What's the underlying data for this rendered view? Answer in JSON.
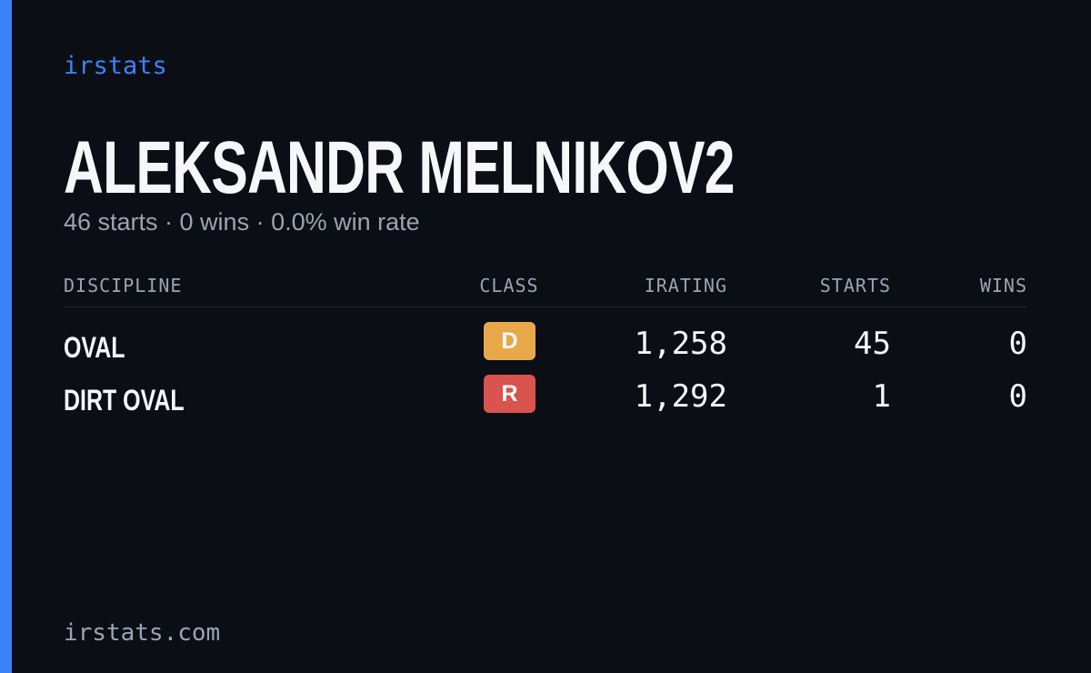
{
  "header": {
    "brand": "irstats",
    "name": "ALEKSANDR MELNIKOV2",
    "subtitle": "46 starts · 0 wins · 0.0% win rate"
  },
  "table": {
    "columns": [
      "DISCIPLINE",
      "CLASS",
      "IRATING",
      "STARTS",
      "WINS"
    ],
    "rows": [
      [
        "OVAL",
        "D",
        "1,258",
        "45",
        "0"
      ],
      [
        "DIRT OVAL",
        "R",
        "1,292",
        "1",
        "0"
      ]
    ]
  },
  "footer": "irstats.com"
}
